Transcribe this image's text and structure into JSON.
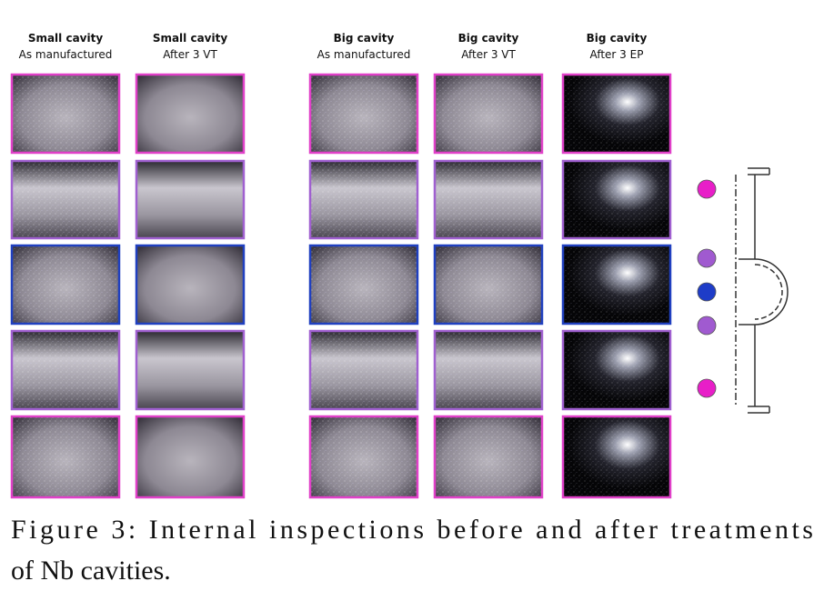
{
  "figure": {
    "columns": [
      {
        "title": "Small cavity",
        "subtitle": "As manufactured"
      },
      {
        "title": "Small cavity",
        "subtitle": "After 3 VT"
      },
      {
        "title": "Big cavity",
        "subtitle": "As manufactured"
      },
      {
        "title": "Big cavity",
        "subtitle": "After 3 VT"
      },
      {
        "title": "Big cavity",
        "subtitle": "After 3 EP"
      }
    ],
    "caption": [
      "Figure 3: Internal inspections before and after treatments",
      "of Nb cavities."
    ]
  }
}
